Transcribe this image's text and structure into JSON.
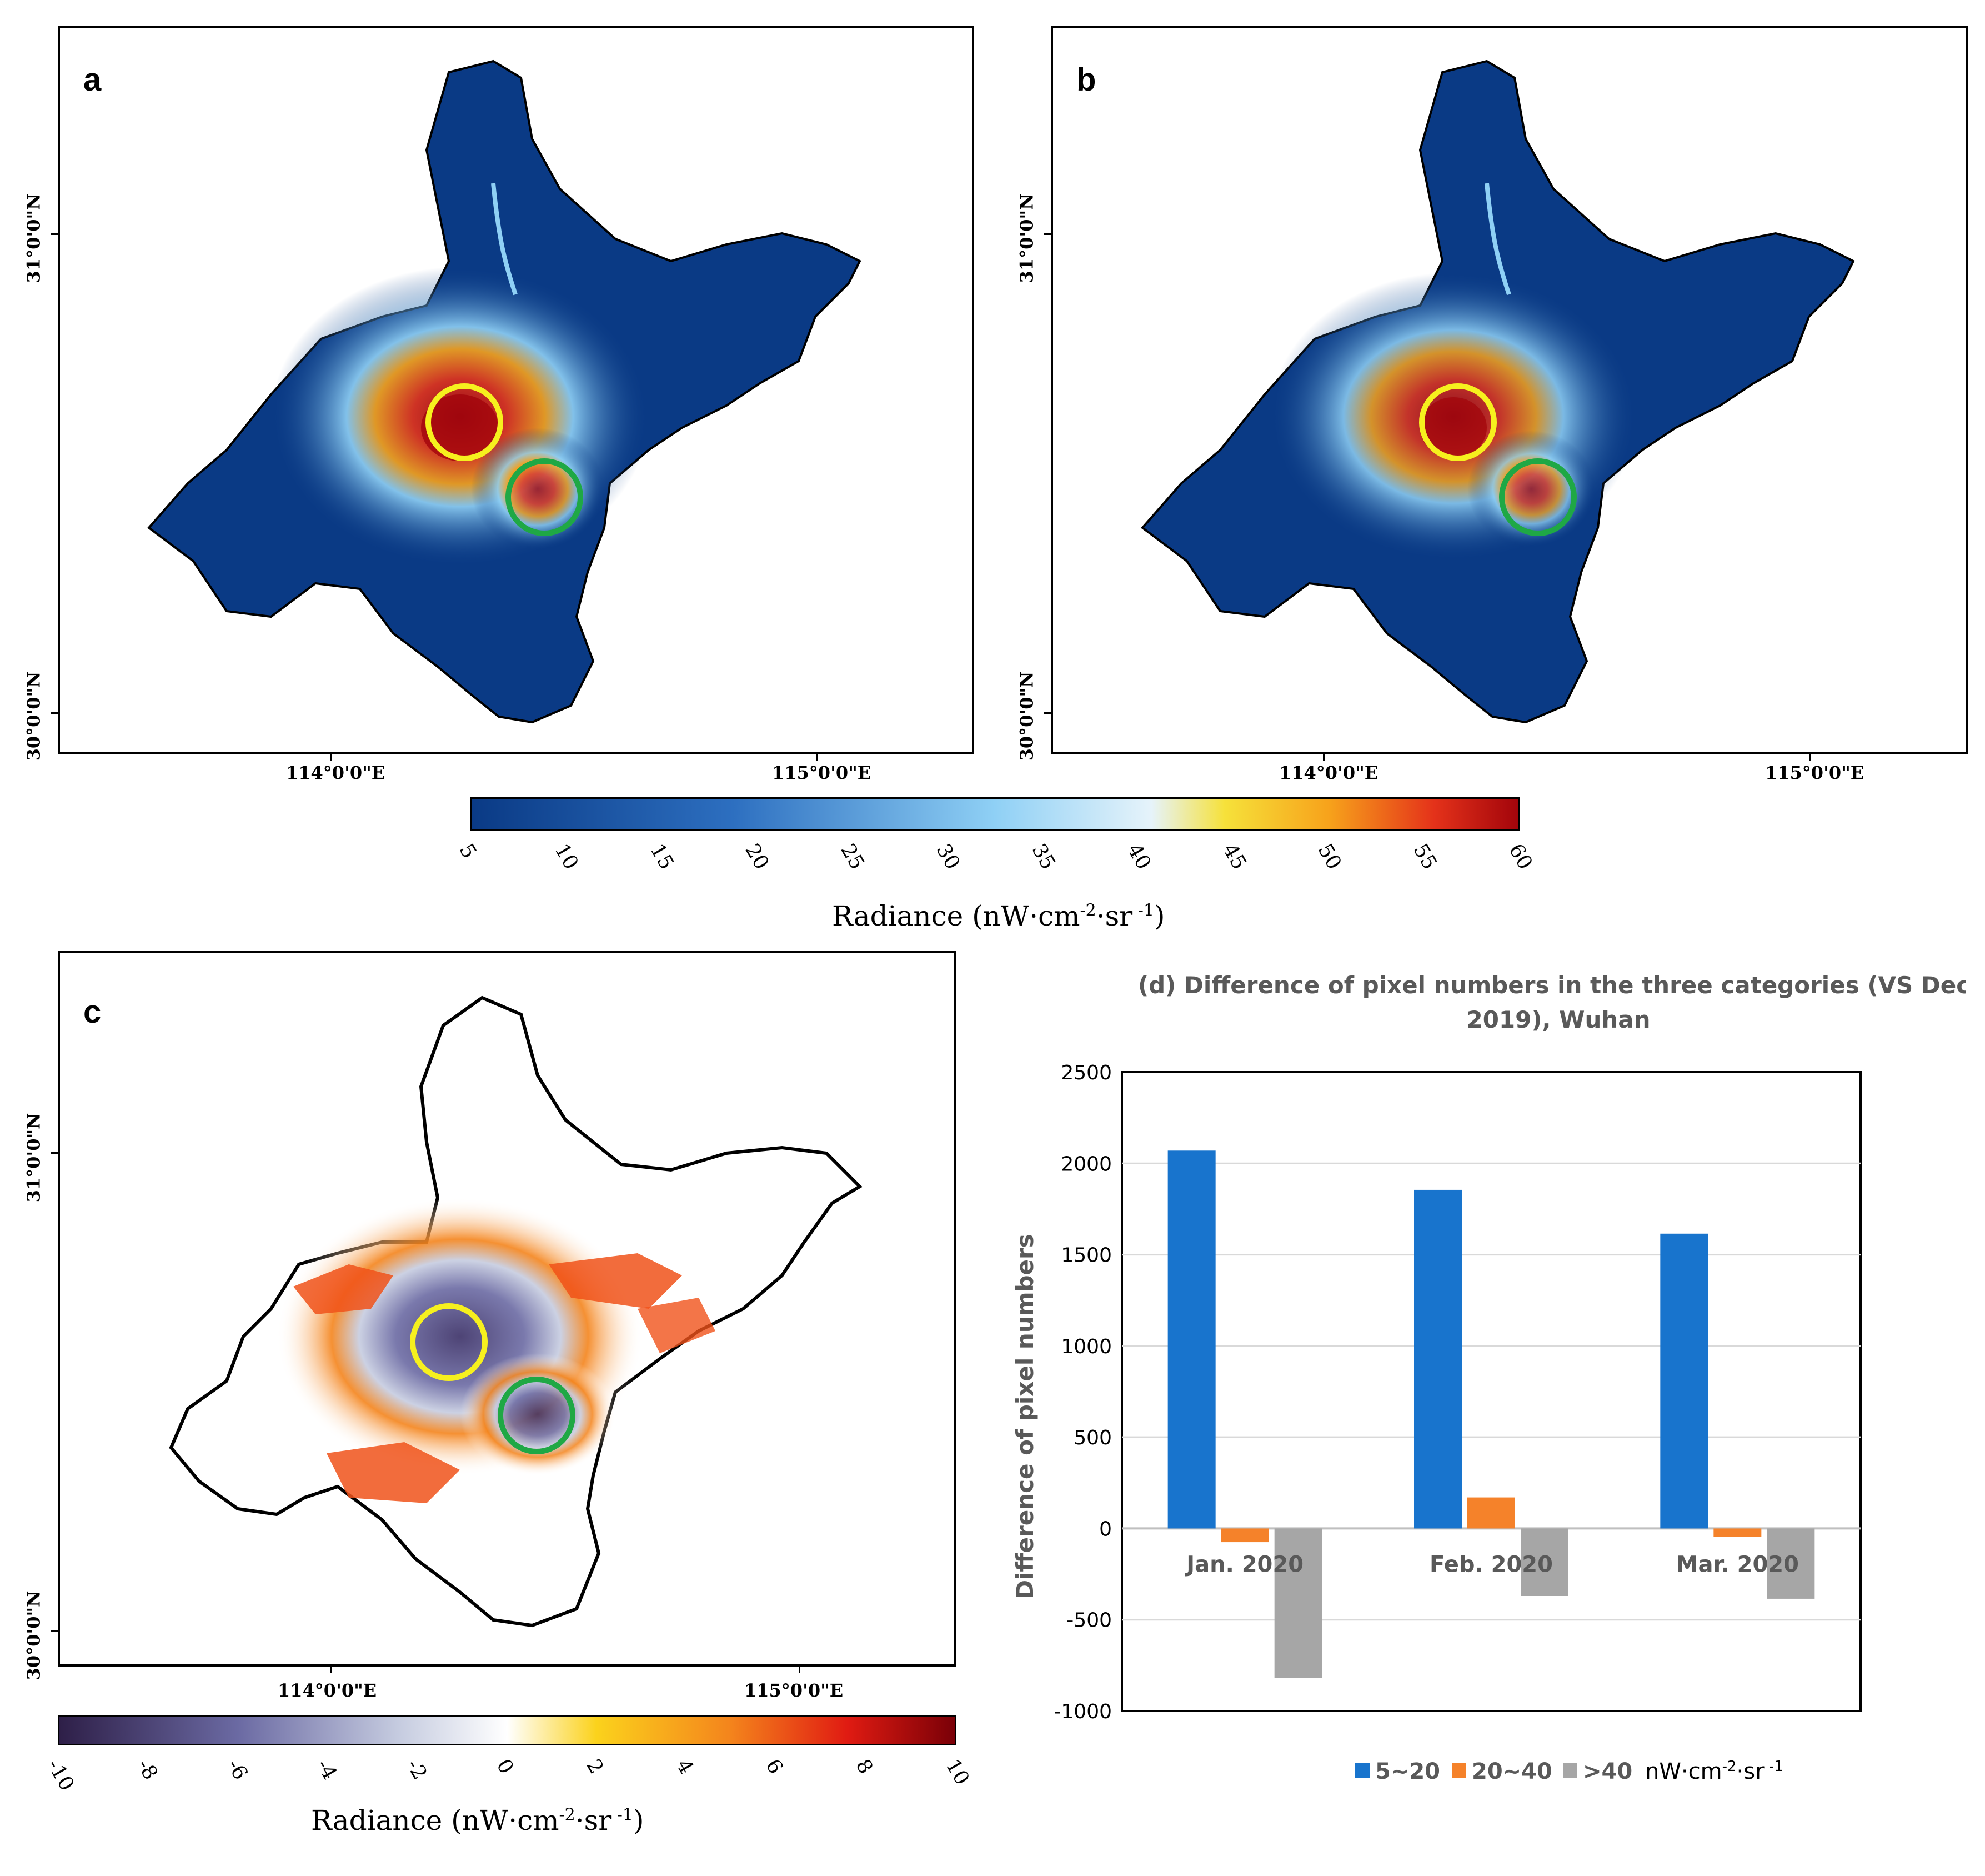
{
  "panels": {
    "a": {
      "letter": "a"
    },
    "b": {
      "letter": "b"
    },
    "c": {
      "letter": "c"
    }
  },
  "coords": {
    "lat_31": "31°0'0\"N",
    "lat_30": "30°0'0\"N",
    "lon_114": "114°0'0\"E",
    "lon_115": "115°0'0\"E"
  },
  "colorbar_top": {
    "ticks": [
      "5",
      "10",
      "15",
      "20",
      "25",
      "30",
      "35",
      "40",
      "45",
      "50",
      "55",
      "60"
    ],
    "label_main": "Radiance (nW·cm",
    "label_sup1": "-2",
    "label_mid": "·sr",
    "label_sup2": " -1",
    "label_end": ")",
    "colors": [
      "#0a3a85",
      "#2d6fc0",
      "#8fd0f5",
      "#e6f3fa",
      "#f6e13a",
      "#f7a21b",
      "#e4321a",
      "#a3050b"
    ]
  },
  "colorbar_bottom": {
    "ticks": [
      "-10",
      "-8",
      "-6",
      "-4",
      "-2",
      "0",
      "2",
      "4",
      "6",
      "8",
      "10"
    ],
    "label_main": "Radiance (nW·cm",
    "label_sup1": "-2",
    "label_mid": "·sr",
    "label_sup2": " -1",
    "label_end": ")",
    "colors": [
      "#2e1f48",
      "#6b6aa3",
      "#c6cce0",
      "#ffffff",
      "#fbd21c",
      "#f4841c",
      "#e01b12",
      "#7a0007"
    ]
  },
  "chart_data": {
    "type": "bar",
    "title_line1": "(d) Difference of pixel numbers in the three categories (VS Dec.",
    "title_line2": "2019), Wuhan",
    "ylabel": "Difference of pixel numbers",
    "xlabel": "",
    "categories": [
      "Jan. 2020",
      "Feb. 2020",
      "Mar. 2020"
    ],
    "series": [
      {
        "name": "5~20",
        "color": "#1874cd",
        "values": [
          2070,
          1855,
          1615
        ]
      },
      {
        "name": "20~40",
        "color": "#f5822a",
        "values": [
          -75,
          170,
          -45
        ]
      },
      {
        "name": ">40",
        "color": "#a6a6a6",
        "values": [
          -820,
          -370,
          -385
        ]
      }
    ],
    "ylim": [
      -1000,
      2500
    ],
    "yticks": [
      -1000,
      -500,
      0,
      500,
      1000,
      1500,
      2000,
      2500
    ],
    "grid": true,
    "legend_position": "bottom",
    "legend_unit": "nW·cm",
    "legend_unit_sup1": "-2",
    "legend_unit_mid": "·sr",
    "legend_unit_sup2": " -1"
  }
}
